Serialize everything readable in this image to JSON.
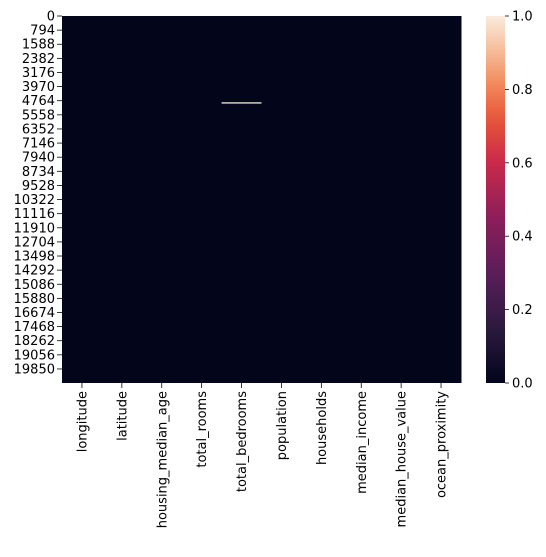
{
  "chart_data": {
    "type": "heatmap",
    "title": "",
    "xlabel": "",
    "ylabel": "",
    "columns": [
      "longitude",
      "latitude",
      "housing_median_age",
      "total_rooms",
      "total_bedrooms",
      "population",
      "households",
      "median_income",
      "median_house_value",
      "ocean_proximity"
    ],
    "row_count": 20640,
    "row_tick_labels": [
      "0",
      "794",
      "1588",
      "2382",
      "3176",
      "3970",
      "4764",
      "5558",
      "6352",
      "7146",
      "7940",
      "8734",
      "9528",
      "10322",
      "11116",
      "11910",
      "12704",
      "13498",
      "14292",
      "15086",
      "15880",
      "16674",
      "17468",
      "18262",
      "19056",
      "19850"
    ],
    "row_tick_values": [
      0,
      794,
      1588,
      2382,
      3176,
      3970,
      4764,
      5558,
      6352,
      7146,
      7940,
      8734,
      9528,
      10322,
      11116,
      11910,
      12704,
      13498,
      14292,
      15086,
      15880,
      16674,
      17468,
      18262,
      19056,
      19850
    ],
    "value_range": [
      0,
      1
    ],
    "default_value": 0,
    "nonzero_cells": [
      {
        "column": "total_bedrooms",
        "row": 4852,
        "value": 1
      }
    ],
    "colorbar": {
      "ticks": [
        "0.0",
        "0.2",
        "0.4",
        "0.6",
        "0.8",
        "1.0"
      ],
      "tick_values": [
        0.0,
        0.2,
        0.4,
        0.6,
        0.8,
        1.0
      ],
      "colormap": "rocket",
      "low_color": "#03051a",
      "high_color": "#faebdd"
    },
    "grid": false
  }
}
